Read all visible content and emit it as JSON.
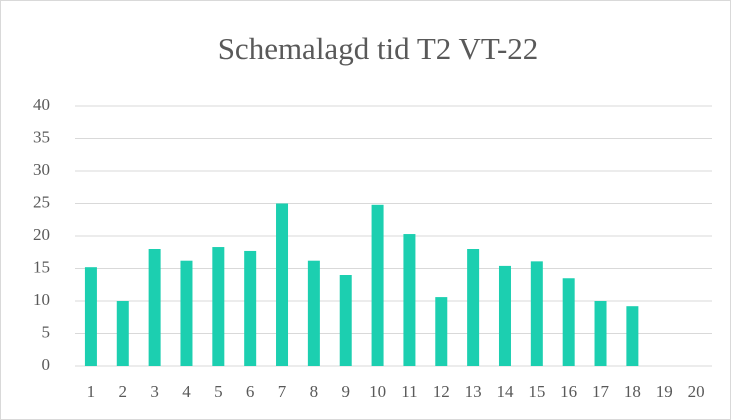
{
  "chart_data": {
    "type": "bar",
    "title": "Schemalagd tid T2 VT-22",
    "categories": [
      "1",
      "2",
      "3",
      "4",
      "5",
      "6",
      "7",
      "8",
      "9",
      "10",
      "11",
      "12",
      "13",
      "14",
      "15",
      "16",
      "17",
      "18",
      "19",
      "20"
    ],
    "values": [
      15.2,
      10,
      18,
      16.2,
      18.3,
      17.7,
      25,
      16.2,
      14,
      24.8,
      20.3,
      10.6,
      18,
      15.4,
      16.1,
      13.5,
      10,
      9.2,
      null,
      null
    ],
    "color": "#1ccfb0",
    "ylim": [
      0,
      40
    ],
    "yticks": [
      0,
      5,
      10,
      15,
      20,
      25,
      30,
      35,
      40
    ],
    "grid": true
  }
}
